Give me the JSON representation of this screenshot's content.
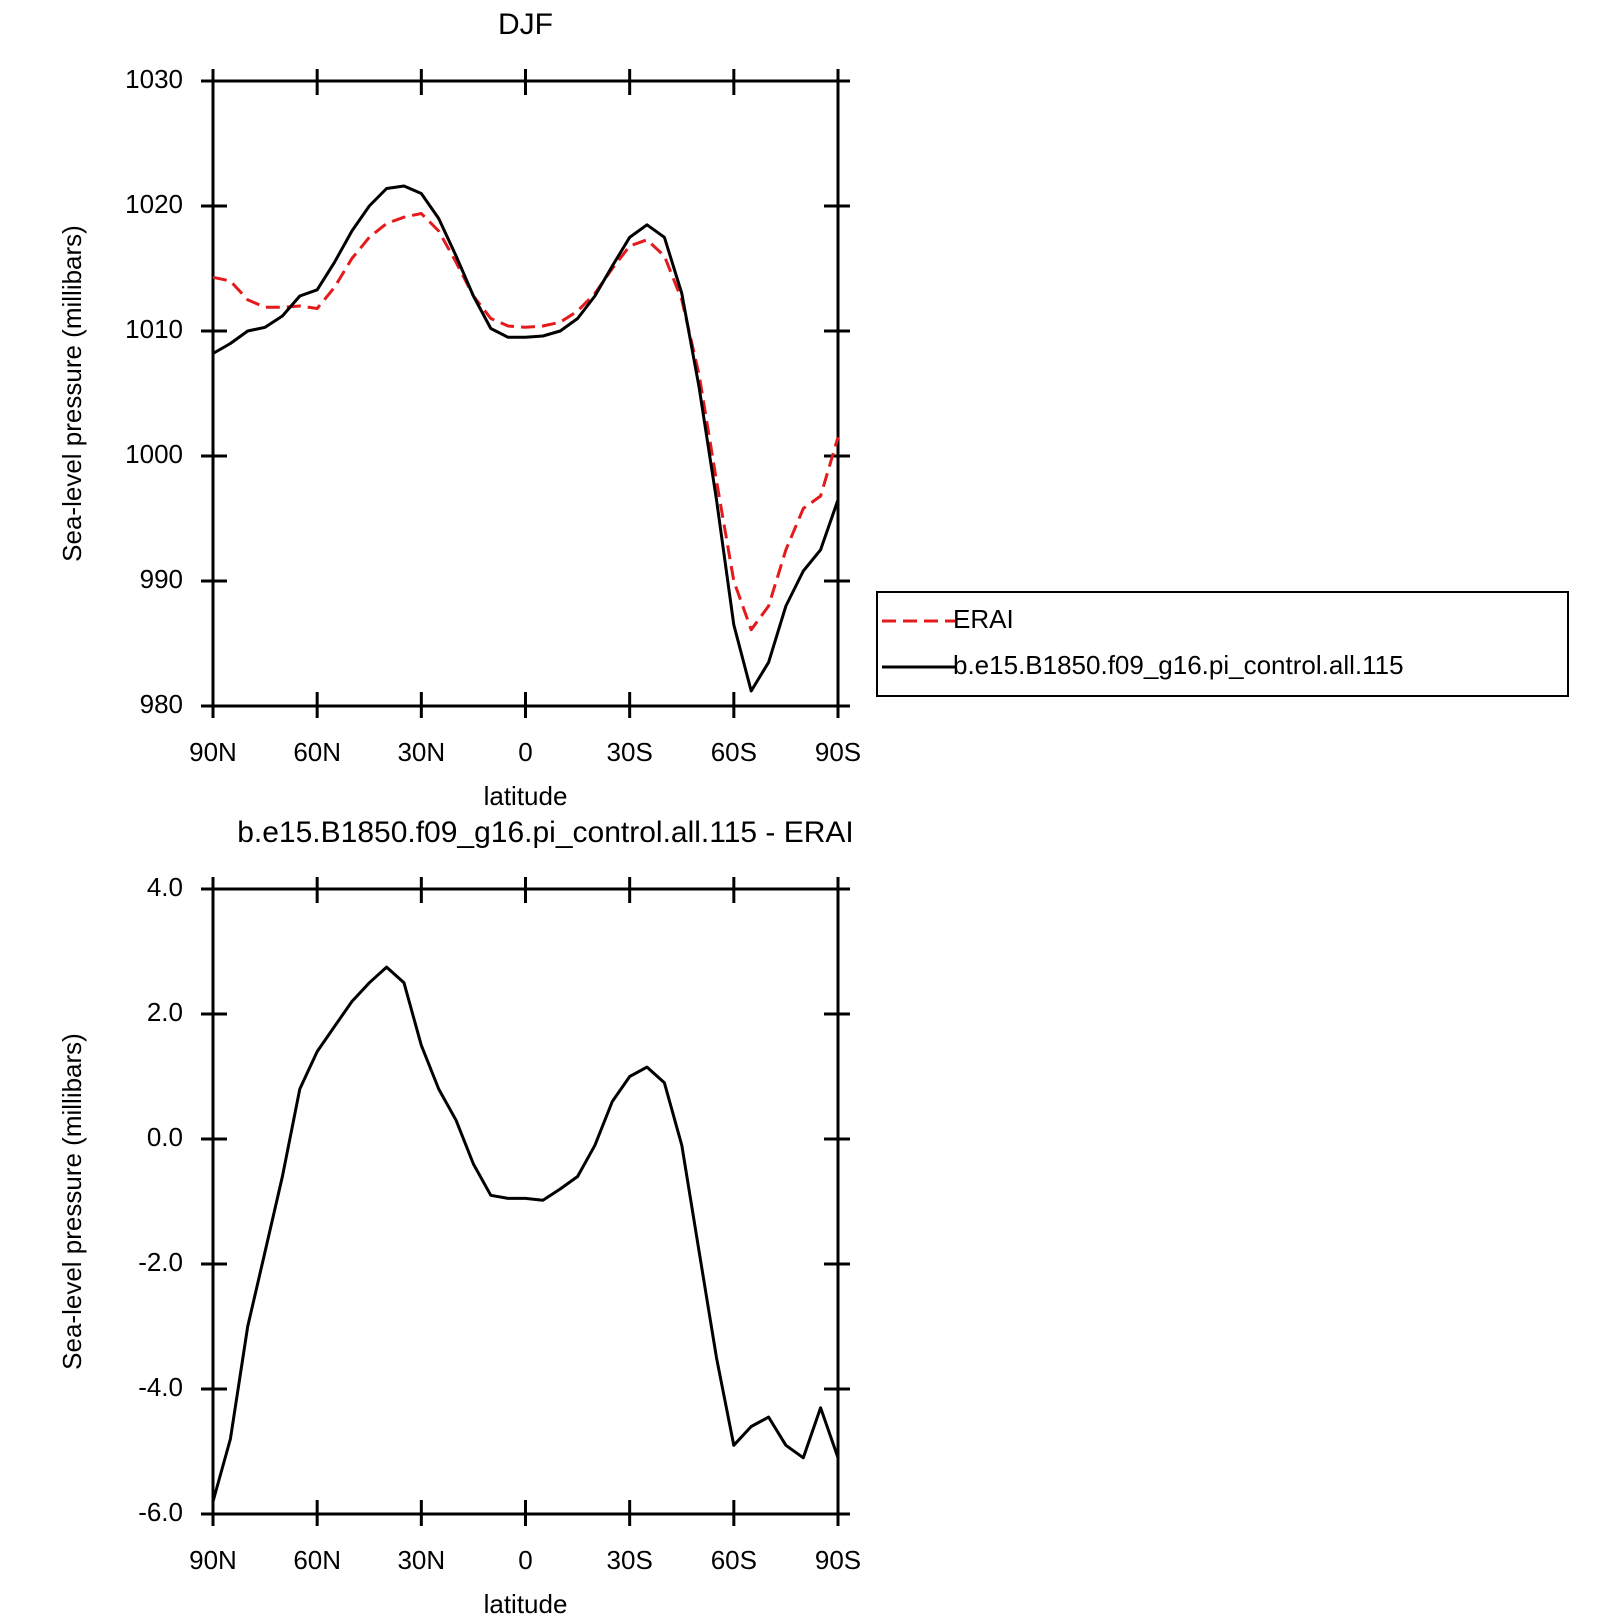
{
  "chart_data": [
    {
      "type": "line",
      "title": "DJF",
      "ylabel": "Sea-level pressure (millibars)",
      "xlabel": "latitude",
      "x": [
        90,
        85,
        80,
        75,
        70,
        65,
        60,
        55,
        50,
        45,
        40,
        35,
        30,
        25,
        20,
        15,
        10,
        5,
        0,
        -5,
        -10,
        -15,
        -20,
        -25,
        -30,
        -35,
        -40,
        -45,
        -50,
        -55,
        -60,
        -65,
        -70,
        -75,
        -80,
        -85,
        -90
      ],
      "series": [
        {
          "name": "ERAI",
          "color": "#e41a1c",
          "line_style": "dashed",
          "values": [
            1014.3,
            1014,
            1012.5,
            1011.9,
            1011.9,
            1012,
            1011.8,
            1013.5,
            1015.8,
            1017.5,
            1018.6,
            1019.1,
            1019.4,
            1018,
            1015.5,
            1012.8,
            1011,
            1010.4,
            1010.3,
            1010.4,
            1010.7,
            1011.6,
            1013,
            1015,
            1016.8,
            1017.3,
            1016,
            1012.5,
            1006.5,
            998,
            990,
            986.1,
            988,
            992.5,
            995.8,
            996.8,
            1001.5
          ]
        },
        {
          "name": "b.e15.B1850.f09_g16.pi_control.all.115",
          "color": "#000000",
          "line_style": "solid",
          "values": [
            1008.2,
            1009,
            1010,
            1010.3,
            1011.2,
            1012.8,
            1013.3,
            1015.5,
            1018,
            1020,
            1021.4,
            1021.6,
            1021,
            1019,
            1016,
            1012.8,
            1010.2,
            1009.5,
            1009.5,
            1009.6,
            1010,
            1011,
            1012.8,
            1015.2,
            1017.5,
            1018.5,
            1017.5,
            1013,
            1005.5,
            996.5,
            986.5,
            981.2,
            983.5,
            988,
            990.8,
            992.5,
            996.5
          ]
        }
      ],
      "xlim": [
        90,
        -90
      ],
      "xticks": [
        {
          "value": 90,
          "label": "90N"
        },
        {
          "value": 60,
          "label": "60N"
        },
        {
          "value": 30,
          "label": "30N"
        },
        0,
        {
          "value": -30,
          "label": "30S"
        },
        {
          "value": -60,
          "label": "60S"
        },
        {
          "value": -90,
          "label": "90S"
        }
      ],
      "ylim": [
        980,
        1030
      ],
      "yticks": [
        980,
        990,
        1000,
        1010,
        1020,
        1030
      ],
      "legend": "right"
    },
    {
      "type": "line",
      "title": "b.e15.B1850.f09_g16.pi_control.all.115 - ERAI",
      "ylabel": "Sea-level pressure (millibars)",
      "xlabel": "latitude",
      "x": [
        90,
        85,
        80,
        75,
        70,
        65,
        60,
        55,
        50,
        45,
        40,
        35,
        30,
        25,
        20,
        15,
        10,
        5,
        0,
        -5,
        -10,
        -15,
        -20,
        -25,
        -30,
        -35,
        -40,
        -45,
        -50,
        -55,
        -60,
        -65,
        -70,
        -75,
        -80,
        -85,
        -90
      ],
      "color": "#000000",
      "values": [
        -5.8,
        -4.8,
        -3,
        -1.8,
        -0.6,
        0.8,
        1.4,
        1.8,
        2.2,
        2.5,
        2.75,
        2.5,
        1.5,
        0.8,
        0.3,
        -0.4,
        -0.9,
        -0.95,
        -0.95,
        -0.98,
        -0.8,
        -0.6,
        -0.1,
        0.6,
        1,
        1.15,
        0.9,
        -0.1,
        -1.8,
        -3.5,
        -4.9,
        -4.6,
        -4.45,
        -4.9,
        -5.1,
        -4.3,
        -5.1
      ],
      "xlim": [
        90,
        -90
      ],
      "xticks": [
        {
          "value": 90,
          "label": "90N"
        },
        {
          "value": 60,
          "label": "60N"
        },
        {
          "value": 30,
          "label": "30N"
        },
        0,
        {
          "value": -30,
          "label": "30S"
        },
        {
          "value": -60,
          "label": "60S"
        },
        {
          "value": -90,
          "label": "90S"
        }
      ],
      "ylim": [
        -6,
        4
      ],
      "yticks": [
        {
          "value": -6,
          "label": "-6.0"
        },
        {
          "value": -4,
          "label": "-4.0"
        },
        {
          "value": -2,
          "label": "-2.0"
        },
        {
          "value": 0,
          "label": "0.0"
        },
        {
          "value": 2,
          "label": "2.0"
        },
        {
          "value": 4,
          "label": "4.0"
        }
      ]
    }
  ]
}
